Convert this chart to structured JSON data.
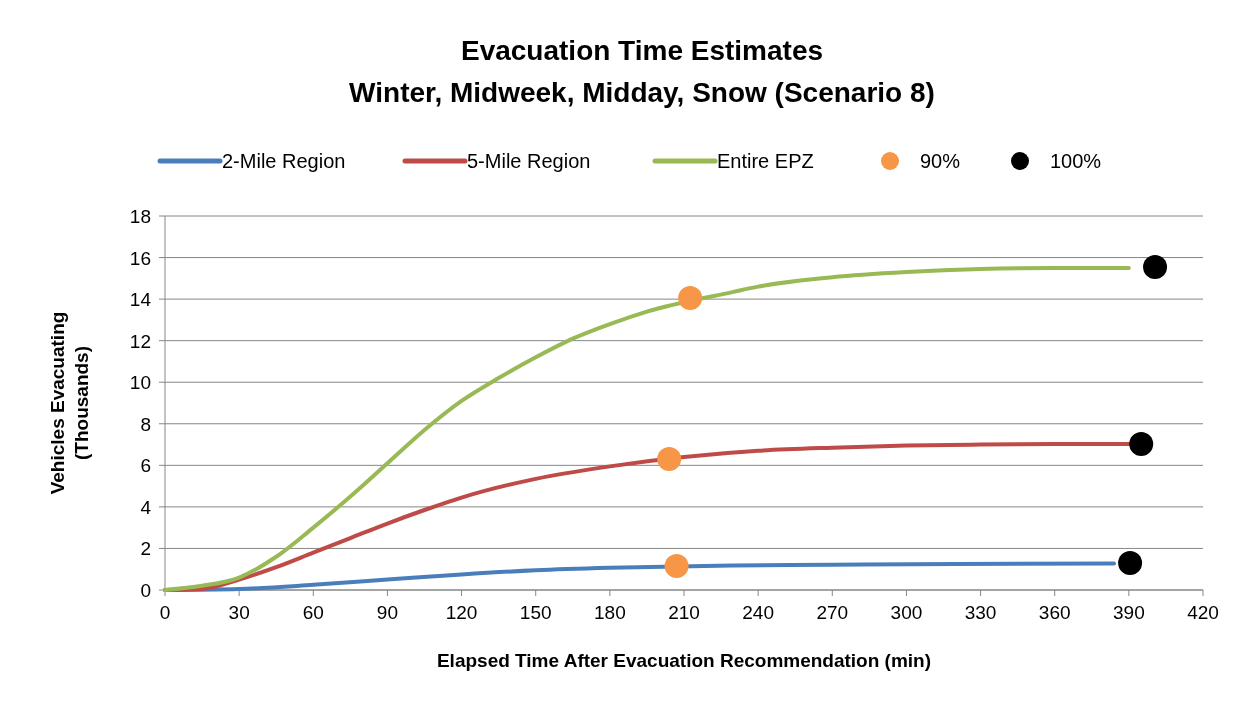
{
  "chart_data": {
    "type": "line",
    "title": "Evacuation Time Estimates\nWinter, Midweek, Midday, Snow (Scenario 8)",
    "xlabel": "Elapsed Time After Evacuation Recommendation (min)",
    "ylabel": "Vehicles Evacuating\n(Thousands)",
    "xlim": [
      0,
      420
    ],
    "xticks": [
      0,
      30,
      60,
      90,
      120,
      150,
      180,
      210,
      240,
      270,
      300,
      330,
      360,
      390,
      420
    ],
    "ylim": [
      0,
      18
    ],
    "yticks": [
      0,
      2,
      4,
      6,
      8,
      10,
      12,
      14,
      16,
      18
    ],
    "grid": "y",
    "legend": "top",
    "marker": "none",
    "line_style": "solid",
    "series": [
      {
        "name": "2-Mile Region",
        "color": "#4a7ebb",
        "x": [
          0,
          30,
          60,
          90,
          120,
          150,
          180,
          230,
          270,
          320,
          384
        ],
        "values": [
          0,
          0.05,
          0.25,
          0.5,
          0.75,
          0.95,
          1.07,
          1.18,
          1.22,
          1.25,
          1.27
        ]
      },
      {
        "name": "5-Mile Region",
        "color": "#be4b48",
        "x": [
          0,
          15,
          30,
          45,
          60,
          75,
          90,
          105,
          120,
          150,
          180,
          210,
          240,
          270,
          300,
          330,
          360,
          390
        ],
        "values": [
          0,
          0.05,
          0.5,
          1.1,
          1.8,
          2.5,
          3.2,
          3.85,
          4.45,
          5.35,
          5.95,
          6.4,
          6.7,
          6.85,
          6.95,
          7.0,
          7.03,
          7.03
        ]
      },
      {
        "name": "Entire EPZ",
        "color": "#98b954",
        "x": [
          0,
          15,
          30,
          45,
          60,
          75,
          90,
          105,
          120,
          135,
          150,
          165,
          180,
          195,
          230,
          240,
          270,
          300,
          330,
          360,
          390
        ],
        "values": [
          0,
          0.2,
          0.6,
          1.6,
          3,
          4.5,
          6.1,
          7.7,
          9.1,
          10.2,
          11.2,
          12.1,
          12.8,
          13.4,
          14.35,
          14.6,
          15.05,
          15.3,
          15.45,
          15.5,
          15.5
        ]
      },
      {
        "name": "90%",
        "type": "scatter",
        "marker": "circle",
        "color": "#f79646",
        "x": [
          207,
          204,
          212.5
        ],
        "values": [
          1.15,
          6.3,
          14.05
        ]
      },
      {
        "name": "100%",
        "type": "scatter",
        "marker": "circle",
        "color": "#000000",
        "x": [
          390.5,
          395,
          400.6
        ],
        "values": [
          1.3,
          7.03,
          15.55
        ]
      }
    ]
  }
}
